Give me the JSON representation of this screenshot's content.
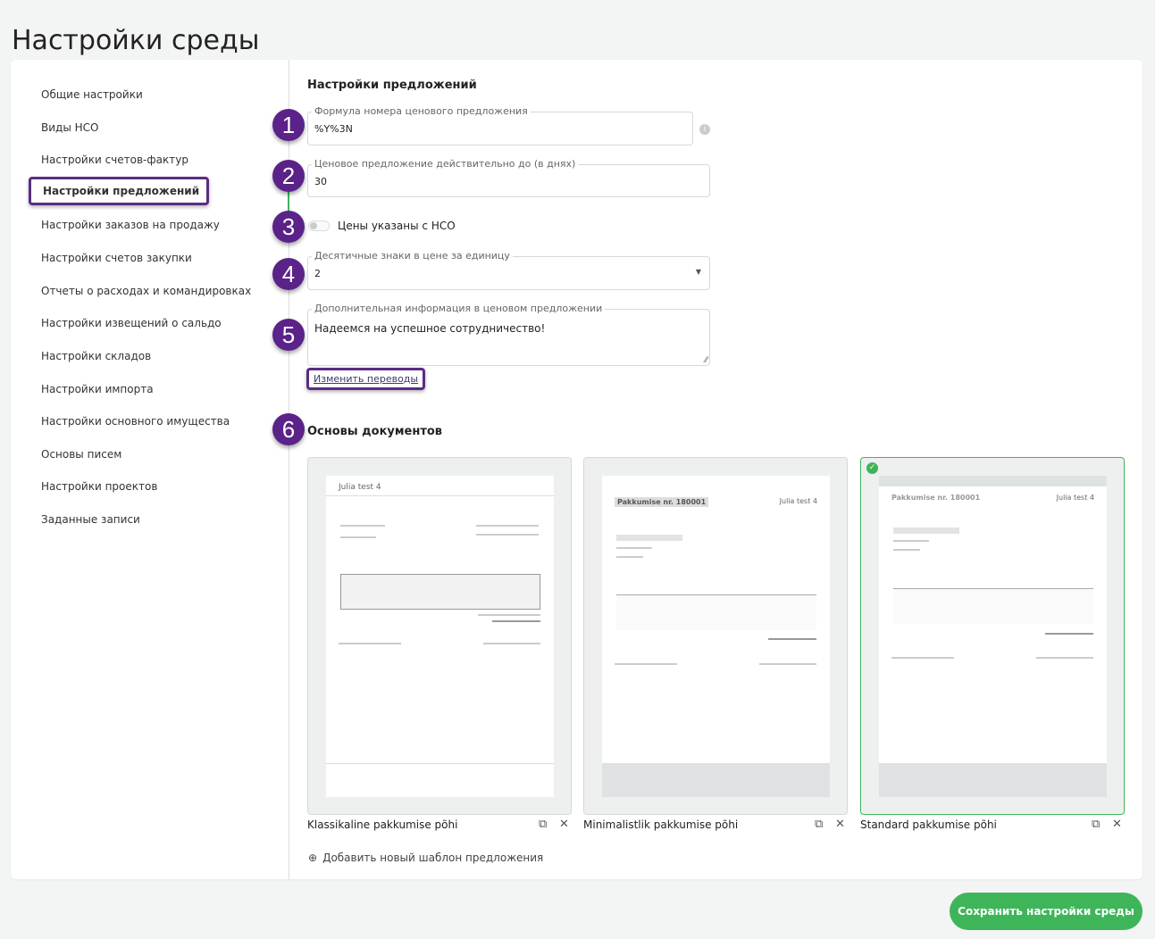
{
  "page_title": "Настройки среды",
  "sidebar": {
    "items": [
      {
        "label": "Общие настройки"
      },
      {
        "label": "Виды НСО"
      },
      {
        "label": "Настройки счетов-фактур"
      },
      {
        "label": "Настройки предложений",
        "active": true
      },
      {
        "label": "Настройки заказов на продажу"
      },
      {
        "label": "Настройки счетов закупки"
      },
      {
        "label": "Отчеты о расходах и командировках"
      },
      {
        "label": "Настройки извещений о сальдо"
      },
      {
        "label": "Настройки складов"
      },
      {
        "label": "Настройки импорта"
      },
      {
        "label": "Настройки основного имущества"
      },
      {
        "label": "Основы писем"
      },
      {
        "label": "Настройки проектов"
      },
      {
        "label": "Заданные записи"
      }
    ]
  },
  "annotations": [
    "1",
    "2",
    "3",
    "4",
    "5",
    "6"
  ],
  "section": {
    "title": "Настройки предложений",
    "number_formula": {
      "label": "Формула номера ценового предложения",
      "value": "%Y%3N"
    },
    "valid_days": {
      "label": "Ценовое предложение действительно до (в днях)",
      "value": "30"
    },
    "prices_with_vat": {
      "label": "Цены указаны с НСО",
      "checked": false
    },
    "decimals": {
      "label": "Десятичные знаки в цене за единицу",
      "value": "2"
    },
    "additional_info": {
      "label": "Дополнительная информация в ценовом предложении",
      "value": "Надеемся на успешное сотрудничество!"
    },
    "translations_link": "Изменить переводы"
  },
  "templates": {
    "title": "Основы документов",
    "items": [
      {
        "name": "Klassikaline pakkumise põhi",
        "preview_header": "Julia test 4",
        "selected": false
      },
      {
        "name": "Minimalistlik pakkumise põhi",
        "preview_header": "Pakkumise nr. 180001",
        "preview_company": "Julia test 4",
        "selected": false
      },
      {
        "name": "Standard pakkumise põhi",
        "preview_header": "Pakkumise nr. 180001",
        "preview_company": "Julia test 4",
        "selected": true
      }
    ],
    "add_label": "Добавить новый шаблон предложения"
  },
  "save_button": "Сохранить настройки среды",
  "colors": {
    "accent": "#3fb55a",
    "annotation": "#5b2289"
  }
}
